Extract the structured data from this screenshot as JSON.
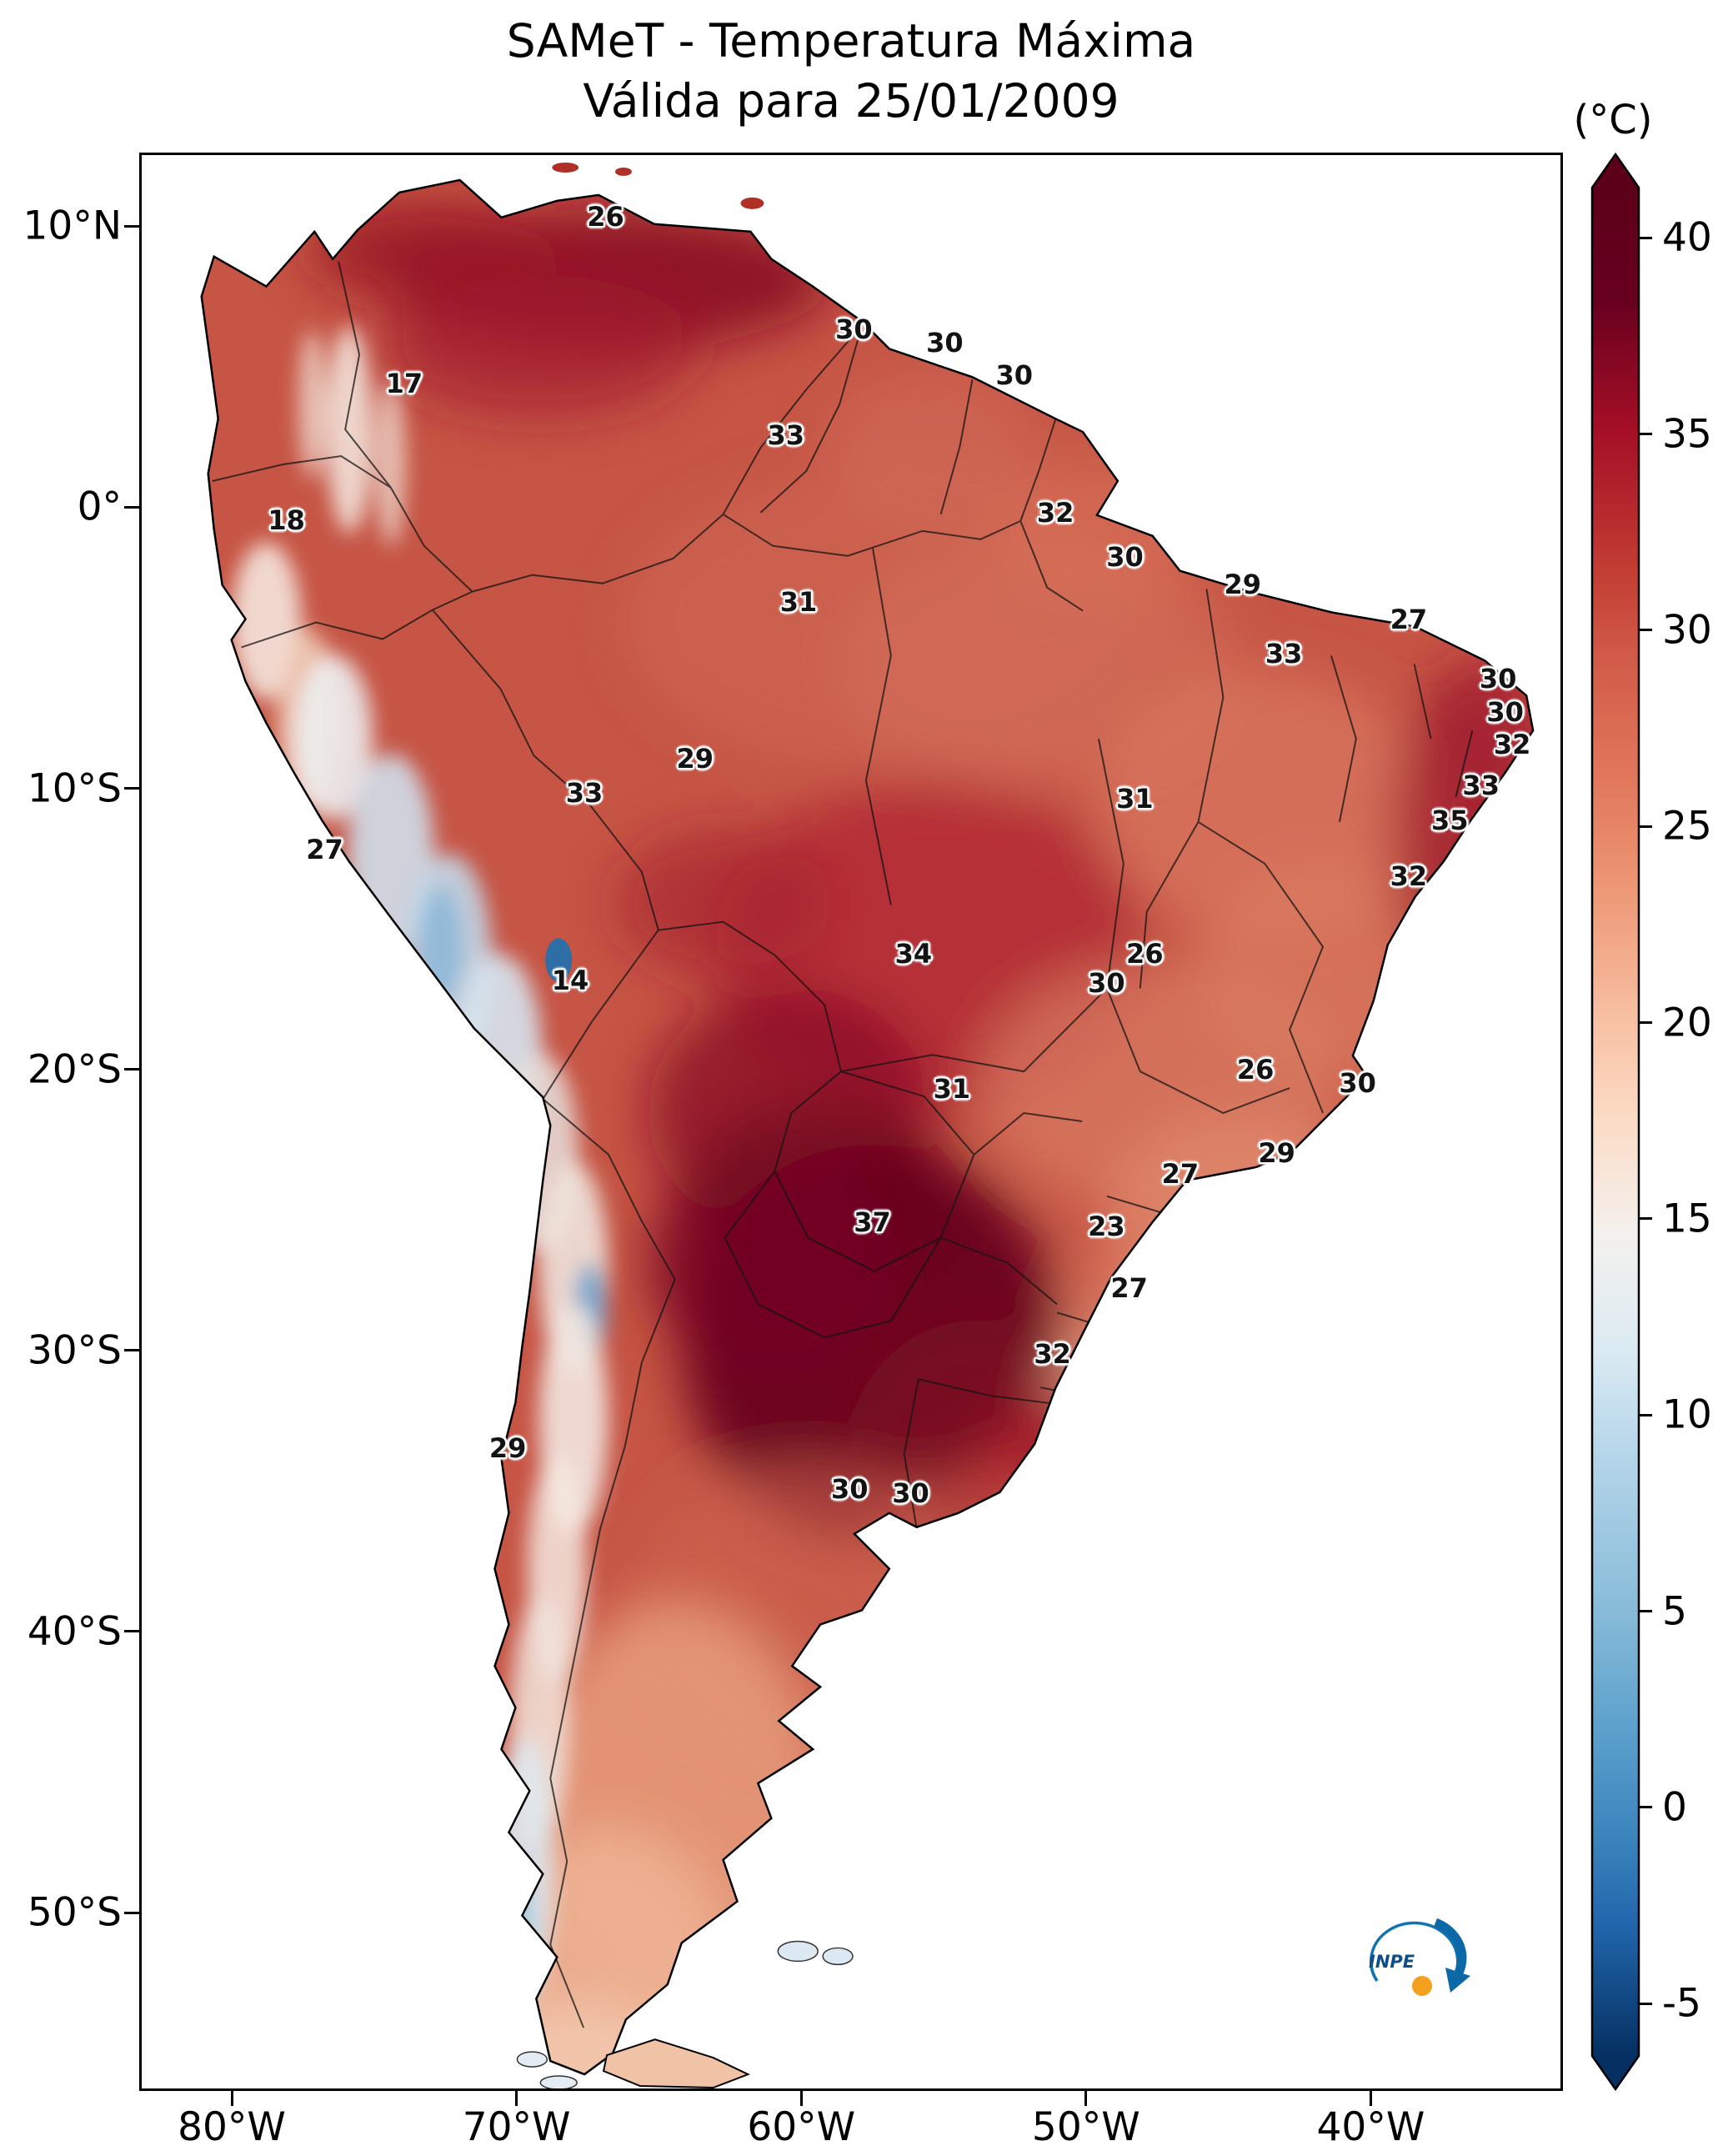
{
  "title": {
    "line1": "SAMeT - Temperatura Máxima",
    "line2": "Válida para 25/01/2009"
  },
  "colorbar": {
    "unit": "(°C)",
    "ticks": [
      40,
      35,
      30,
      25,
      20,
      15,
      10,
      5,
      0,
      -5
    ]
  },
  "axes": {
    "y_ticks": [
      {
        "label": "10°N",
        "pos": 3.8
      },
      {
        "label": "0°",
        "pos": 18.3
      },
      {
        "label": "10°S",
        "pos": 32.8
      },
      {
        "label": "20°S",
        "pos": 47.3
      },
      {
        "label": "30°S",
        "pos": 61.8
      },
      {
        "label": "40°S",
        "pos": 76.3
      },
      {
        "label": "50°S",
        "pos": 90.8
      }
    ],
    "x_ticks": [
      {
        "label": "80°W",
        "pos": 6.5
      },
      {
        "label": "70°W",
        "pos": 26.5
      },
      {
        "label": "60°W",
        "pos": 46.5
      },
      {
        "label": "50°W",
        "pos": 66.5
      },
      {
        "label": "40°W",
        "pos": 86.5
      }
    ]
  },
  "logo": {
    "text": "INPE"
  },
  "palette": {
    "hot_max": "#67001f",
    "cold_min": "#053061",
    "land_base": "#c65545",
    "logo_blue": "#0d68a8",
    "logo_orange": "#f2a01d"
  },
  "chart_data": {
    "type": "heatmap",
    "title": "SAMeT - Temperatura Máxima",
    "subtitle": "Válida para 25/01/2009",
    "region": "South America",
    "unit": "°C",
    "colormap": "red-white-blue (RdBu_r style), extended arrows both ends",
    "colorbar_range": [
      -5,
      40
    ],
    "colorbar_ticks": [
      40,
      35,
      30,
      25,
      20,
      15,
      10,
      5,
      0,
      -5
    ],
    "x_axis_ticks": [
      "80°W",
      "70°W",
      "60°W",
      "50°W",
      "40°W"
    ],
    "y_axis_ticks": [
      "10°N",
      "0°",
      "10°S",
      "20°S",
      "30°S",
      "40°S",
      "50°S"
    ],
    "points": [
      {
        "value": 26,
        "x": 32.7,
        "y": 3.2,
        "lon": -66.9,
        "lat": 10.3
      },
      {
        "value": 17,
        "x": 18.5,
        "y": 11.8,
        "lon": -74.0,
        "lat": 4.4
      },
      {
        "value": 18,
        "x": 10.2,
        "y": 18.9,
        "lon": -78.1,
        "lat": -0.5
      },
      {
        "value": 30,
        "x": 50.2,
        "y": 9.0,
        "lon": -58.2,
        "lat": 6.3
      },
      {
        "value": 30,
        "x": 56.6,
        "y": 9.7,
        "lon": -55.0,
        "lat": 5.8
      },
      {
        "value": 30,
        "x": 61.5,
        "y": 11.4,
        "lon": -52.6,
        "lat": 4.6
      },
      {
        "value": 33,
        "x": 45.4,
        "y": 14.5,
        "lon": -60.6,
        "lat": 2.5
      },
      {
        "value": 32,
        "x": 64.4,
        "y": 18.5,
        "lon": -51.1,
        "lat": -0.2
      },
      {
        "value": 30,
        "x": 69.3,
        "y": 20.8,
        "lon": -48.7,
        "lat": -1.8
      },
      {
        "value": 29,
        "x": 77.6,
        "y": 22.2,
        "lon": -44.5,
        "lat": -2.8
      },
      {
        "value": 31,
        "x": 46.3,
        "y": 23.1,
        "lon": -60.1,
        "lat": -3.4
      },
      {
        "value": 27,
        "x": 89.3,
        "y": 24.0,
        "lon": -38.7,
        "lat": -4.0
      },
      {
        "value": 33,
        "x": 80.5,
        "y": 25.8,
        "lon": -43.1,
        "lat": -5.2
      },
      {
        "value": 30,
        "x": 95.6,
        "y": 27.1,
        "lon": -35.6,
        "lat": -6.1
      },
      {
        "value": 30,
        "x": 96.1,
        "y": 28.8,
        "lon": -35.3,
        "lat": -7.3
      },
      {
        "value": 32,
        "x": 96.6,
        "y": 30.5,
        "lon": -35.1,
        "lat": -8.5
      },
      {
        "value": 29,
        "x": 39.0,
        "y": 31.2,
        "lon": -63.7,
        "lat": -9.0
      },
      {
        "value": 33,
        "x": 94.4,
        "y": 32.6,
        "lon": -36.2,
        "lat": -9.9
      },
      {
        "value": 33,
        "x": 31.2,
        "y": 33.0,
        "lon": -67.6,
        "lat": -10.2
      },
      {
        "value": 31,
        "x": 70.0,
        "y": 33.3,
        "lon": -48.3,
        "lat": -10.4
      },
      {
        "value": 35,
        "x": 92.2,
        "y": 34.4,
        "lon": -37.3,
        "lat": -11.1
      },
      {
        "value": 27,
        "x": 12.9,
        "y": 35.9,
        "lon": -76.7,
        "lat": -12.2
      },
      {
        "value": 32,
        "x": 89.3,
        "y": 37.3,
        "lon": -38.7,
        "lat": -13.1
      },
      {
        "value": 34,
        "x": 54.4,
        "y": 41.3,
        "lon": -56.1,
        "lat": -15.9
      },
      {
        "value": 26,
        "x": 70.7,
        "y": 41.3,
        "lon": -48.0,
        "lat": -15.9
      },
      {
        "value": 30,
        "x": 68.0,
        "y": 42.8,
        "lon": -49.3,
        "lat": -16.9
      },
      {
        "value": 14,
        "x": 30.2,
        "y": 42.7,
        "lon": -68.1,
        "lat": -16.8
      },
      {
        "value": 26,
        "x": 78.5,
        "y": 47.3,
        "lon": -44.1,
        "lat": -20.0
      },
      {
        "value": 31,
        "x": 57.1,
        "y": 48.3,
        "lon": -54.7,
        "lat": -20.7
      },
      {
        "value": 30,
        "x": 85.7,
        "y": 48.0,
        "lon": -40.5,
        "lat": -20.5
      },
      {
        "value": 29,
        "x": 80.0,
        "y": 51.6,
        "lon": -43.4,
        "lat": -22.9
      },
      {
        "value": 27,
        "x": 73.2,
        "y": 52.7,
        "lon": -46.7,
        "lat": -23.7
      },
      {
        "value": 37,
        "x": 51.5,
        "y": 55.2,
        "lon": -57.5,
        "lat": -25.4
      },
      {
        "value": 23,
        "x": 68.0,
        "y": 55.4,
        "lon": -49.3,
        "lat": -25.6
      },
      {
        "value": 27,
        "x": 69.6,
        "y": 58.6,
        "lon": -48.5,
        "lat": -27.8
      },
      {
        "value": 32,
        "x": 64.2,
        "y": 62.0,
        "lon": -51.2,
        "lat": -30.1
      },
      {
        "value": 29,
        "x": 25.8,
        "y": 66.9,
        "lon": -70.3,
        "lat": -33.5
      },
      {
        "value": 30,
        "x": 49.9,
        "y": 69.0,
        "lon": -58.3,
        "lat": -34.9
      },
      {
        "value": 30,
        "x": 54.2,
        "y": 69.2,
        "lon": -56.2,
        "lat": -35.0
      }
    ]
  }
}
